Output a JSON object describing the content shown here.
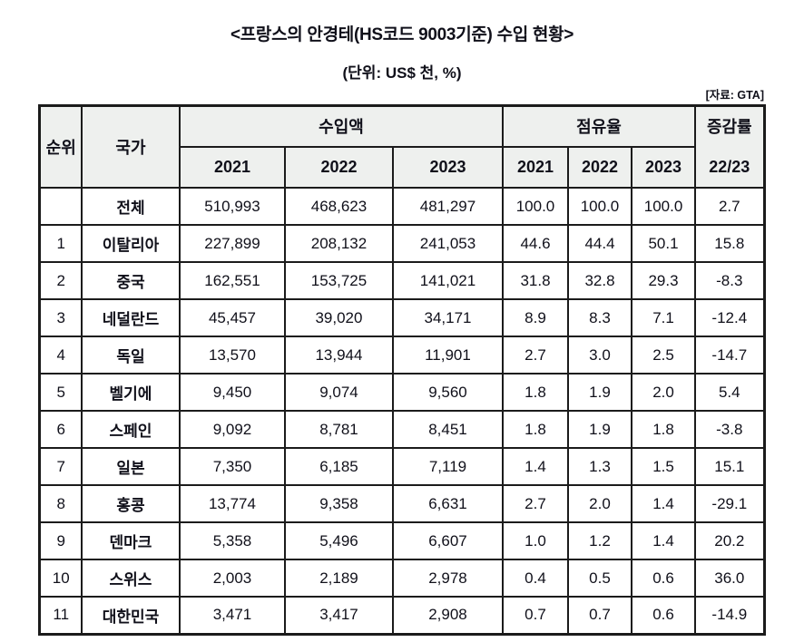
{
  "title": "<프랑스의 안경테(HS코드 9003기준) 수입 현황>",
  "unit_label": "(단위: US$ 천, %)",
  "source_label": "[자료: GTA]",
  "colors": {
    "header_bg": "#eef0ee",
    "border": "#1b1b1b",
    "text": "#10101a",
    "row_bg": "#ffffff"
  },
  "chart_data": {
    "type": "table",
    "title": "<프랑스의 안경테(HS코드 9003기준) 수입 현황>",
    "unit": "(단위: US$ 천, %)",
    "source": "[자료: GTA]",
    "header": {
      "rank": "순위",
      "country": "국가",
      "imports_group": "수입액",
      "share_group": "점유율",
      "growth_line1": "증감률",
      "growth_line2": "22/23",
      "import_years": [
        "2021",
        "2022",
        "2023"
      ],
      "share_years": [
        "2021",
        "2022",
        "2023"
      ]
    },
    "rows": [
      {
        "rank": "",
        "country": "전체",
        "imports": [
          "510,993",
          "468,623",
          "481,297"
        ],
        "shares": [
          "100.0",
          "100.0",
          "100.0"
        ],
        "growth": "2.7"
      },
      {
        "rank": "1",
        "country": "이탈리아",
        "imports": [
          "227,899",
          "208,132",
          "241,053"
        ],
        "shares": [
          "44.6",
          "44.4",
          "50.1"
        ],
        "growth": "15.8"
      },
      {
        "rank": "2",
        "country": "중국",
        "imports": [
          "162,551",
          "153,725",
          "141,021"
        ],
        "shares": [
          "31.8",
          "32.8",
          "29.3"
        ],
        "growth": "-8.3"
      },
      {
        "rank": "3",
        "country": "네덜란드",
        "imports": [
          "45,457",
          "39,020",
          "34,171"
        ],
        "shares": [
          "8.9",
          "8.3",
          "7.1"
        ],
        "growth": "-12.4"
      },
      {
        "rank": "4",
        "country": "독일",
        "imports": [
          "13,570",
          "13,944",
          "11,901"
        ],
        "shares": [
          "2.7",
          "3.0",
          "2.5"
        ],
        "growth": "-14.7"
      },
      {
        "rank": "5",
        "country": "벨기에",
        "imports": [
          "9,450",
          "9,074",
          "9,560"
        ],
        "shares": [
          "1.8",
          "1.9",
          "2.0"
        ],
        "growth": "5.4"
      },
      {
        "rank": "6",
        "country": "스페인",
        "imports": [
          "9,092",
          "8,781",
          "8,451"
        ],
        "shares": [
          "1.8",
          "1.9",
          "1.8"
        ],
        "growth": "-3.8"
      },
      {
        "rank": "7",
        "country": "일본",
        "imports": [
          "7,350",
          "6,185",
          "7,119"
        ],
        "shares": [
          "1.4",
          "1.3",
          "1.5"
        ],
        "growth": "15.1"
      },
      {
        "rank": "8",
        "country": "홍콩",
        "imports": [
          "13,774",
          "9,358",
          "6,631"
        ],
        "shares": [
          "2.7",
          "2.0",
          "1.4"
        ],
        "growth": "-29.1"
      },
      {
        "rank": "9",
        "country": "덴마크",
        "imports": [
          "5,358",
          "5,496",
          "6,607"
        ],
        "shares": [
          "1.0",
          "1.2",
          "1.4"
        ],
        "growth": "20.2"
      },
      {
        "rank": "10",
        "country": "스위스",
        "imports": [
          "2,003",
          "2,189",
          "2,978"
        ],
        "shares": [
          "0.4",
          "0.5",
          "0.6"
        ],
        "growth": "36.0"
      },
      {
        "rank": "11",
        "country": "대한민국",
        "imports": [
          "3,471",
          "3,417",
          "2,908"
        ],
        "shares": [
          "0.7",
          "0.7",
          "0.6"
        ],
        "growth": "-14.9"
      }
    ]
  }
}
